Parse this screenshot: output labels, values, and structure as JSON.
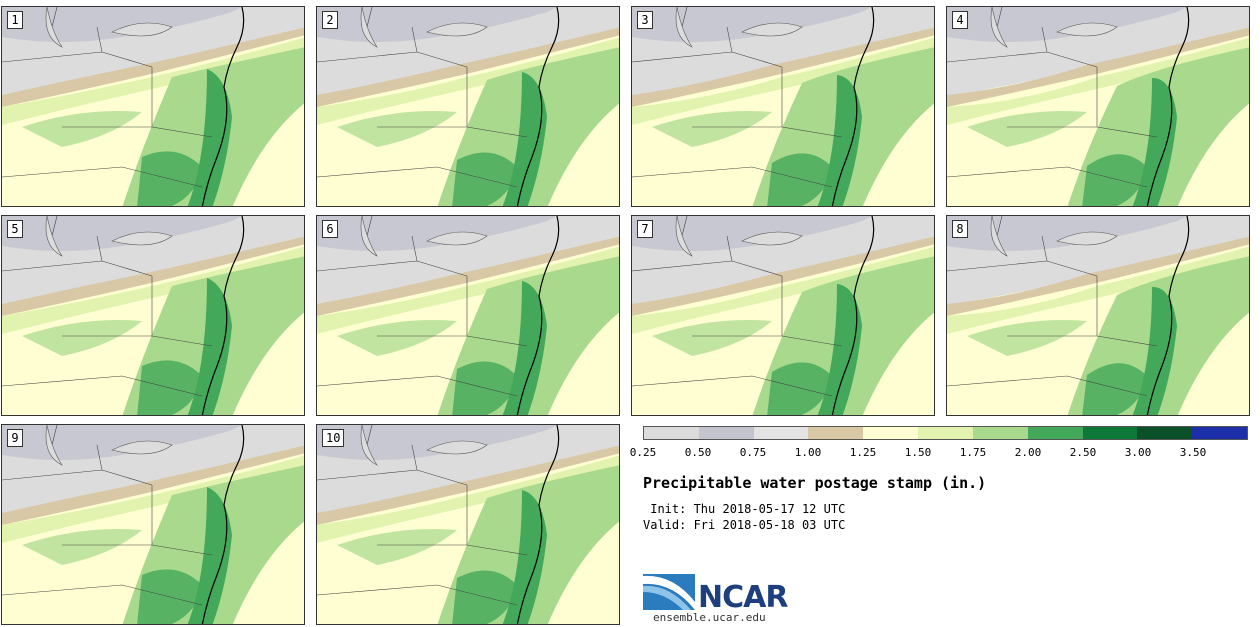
{
  "panels": [
    {
      "label": "1"
    },
    {
      "label": "2"
    },
    {
      "label": "3"
    },
    {
      "label": "4"
    },
    {
      "label": "5"
    },
    {
      "label": "6"
    },
    {
      "label": "7"
    },
    {
      "label": "8"
    },
    {
      "label": "9"
    },
    {
      "label": "10"
    }
  ],
  "colorbar": {
    "colors": [
      "#dcdcdc",
      "#c4c4ce",
      "#e3e3e3",
      "#d8c8a6",
      "#fefed2",
      "#e2f3b0",
      "#a8d98c",
      "#44a85a",
      "#0e7838",
      "#0a5028",
      "#1c2fa8"
    ],
    "ticks": [
      "0.25",
      "0.50",
      "0.75",
      "1.00",
      "1.25",
      "1.50",
      "1.75",
      "2.00",
      "2.50",
      "3.00",
      "3.50"
    ]
  },
  "title": "Precipitable water postage stamp (in.)",
  "init": " Init: Thu 2018-05-17 12 UTC",
  "valid": "Valid: Fri 2018-05-18 03 UTC",
  "logo": {
    "text": "NCAR",
    "url": "ensemble.ucar.edu"
  }
}
